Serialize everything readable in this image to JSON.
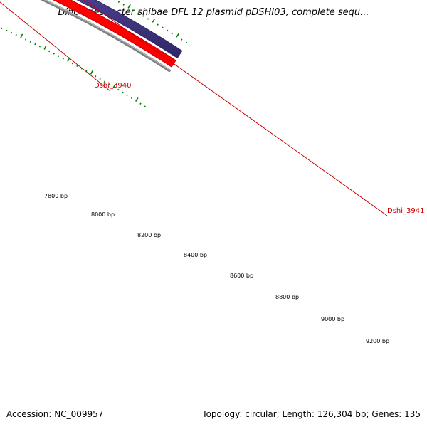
{
  "title": "Dinoroseobacter shibae DFL 12 plasmid pDSHI03, complete sequ...",
  "footer": {
    "accession": "Accession: NC_009957",
    "summary": "Topology: circular; Length: 126,304 bp; Genes: 135"
  },
  "colors": {
    "gene_green": "#6b8e23",
    "gene_blue": "#483d8b",
    "cds_red": "#ff0000",
    "backbone_gray": "#808080",
    "tick_green": "#008000",
    "label_red": "#cc0000"
  },
  "genes": [
    {
      "name": "Dshi_3940",
      "strand": "forward"
    },
    {
      "name": "Dshi_3941",
      "strand": "forward"
    }
  ],
  "scale_labels": [
    "7800 bp",
    "8000 bp",
    "8200 bp",
    "8400 bp",
    "8600 bp",
    "8800 bp",
    "9000 bp",
    "9200 bp"
  ]
}
